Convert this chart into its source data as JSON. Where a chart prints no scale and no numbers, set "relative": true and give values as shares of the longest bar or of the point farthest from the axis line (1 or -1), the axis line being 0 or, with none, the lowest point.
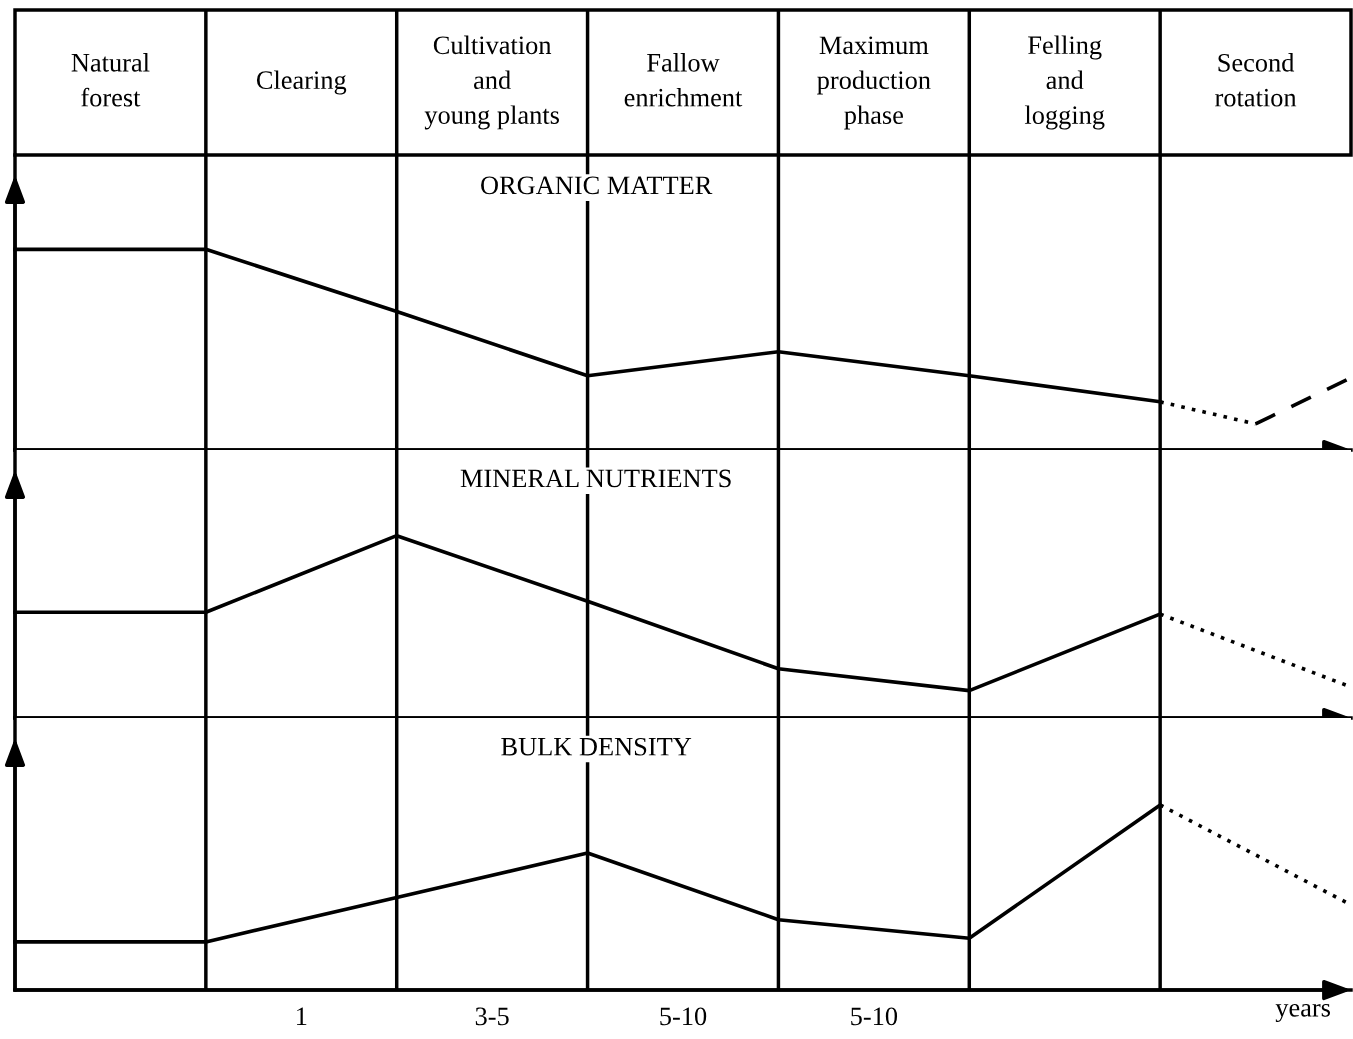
{
  "chart_data": [
    {
      "type": "line",
      "title": "ORGANIC MATTER",
      "relative": true,
      "grid": "x",
      "categories": [
        null,
        "Natural\nforest",
        null,
        "Clearing",
        null,
        "Cultivation\nand\nyoung plants",
        null,
        "Fallow\nenrichment",
        null,
        "Maximum\nproduction\nphase",
        null,
        "Felling\nand\nlogging",
        null,
        "Second\nrotation",
        null
      ],
      "series": [
        {
          "values": [
            1,
            null,
            1,
            null,
            0.69,
            null,
            0.37,
            null,
            0.49,
            null,
            0.37,
            null,
            0.24,
            null,
            null
          ],
          "color": "#000000",
          "line_style": "solid"
        },
        {
          "values": [
            null,
            null,
            null,
            null,
            null,
            null,
            null,
            null,
            null,
            null,
            null,
            null,
            0.24,
            0.13,
            null
          ],
          "color": "#000000",
          "line_style": "dotted"
        },
        {
          "values": [
            null,
            null,
            null,
            null,
            null,
            null,
            null,
            null,
            null,
            null,
            null,
            null,
            null,
            0.13,
            0.36
          ],
          "color": "#000000",
          "line_style": "dashed"
        }
      ]
    },
    {
      "type": "line",
      "title": "MINERAL NUTRIENTS",
      "relative": true,
      "grid": "x",
      "categories": [
        null,
        null,
        null,
        null,
        null,
        null,
        null,
        null,
        null,
        null,
        null,
        null,
        null,
        null,
        null
      ],
      "series": [
        {
          "values": [
            0.58,
            null,
            0.58,
            null,
            1,
            null,
            0.64,
            null,
            0.27,
            null,
            0.15,
            null,
            0.57,
            null,
            null
          ],
          "color": "#000000",
          "line_style": "solid"
        },
        {
          "values": [
            null,
            null,
            null,
            null,
            null,
            null,
            null,
            null,
            null,
            null,
            null,
            null,
            0.57,
            null,
            0.17
          ],
          "color": "#000000",
          "line_style": "dotted"
        }
      ]
    },
    {
      "type": "line",
      "title": "BULK DENSITY",
      "relative": true,
      "grid": "x",
      "xlabel": "years",
      "categories": [
        null,
        null,
        null,
        "1",
        null,
        "3-5",
        null,
        "5-10",
        null,
        "5-10",
        null,
        null,
        null,
        null,
        null
      ],
      "series": [
        {
          "values": [
            0.26,
            null,
            0.26,
            null,
            0.5,
            null,
            0.74,
            null,
            0.38,
            null,
            0.28,
            null,
            1,
            null,
            null
          ],
          "color": "#000000",
          "line_style": "solid"
        },
        {
          "values": [
            null,
            null,
            null,
            null,
            null,
            null,
            null,
            null,
            null,
            null,
            null,
            null,
            1,
            null,
            0.46
          ],
          "color": "#000000",
          "line_style": "dotted"
        }
      ]
    }
  ]
}
